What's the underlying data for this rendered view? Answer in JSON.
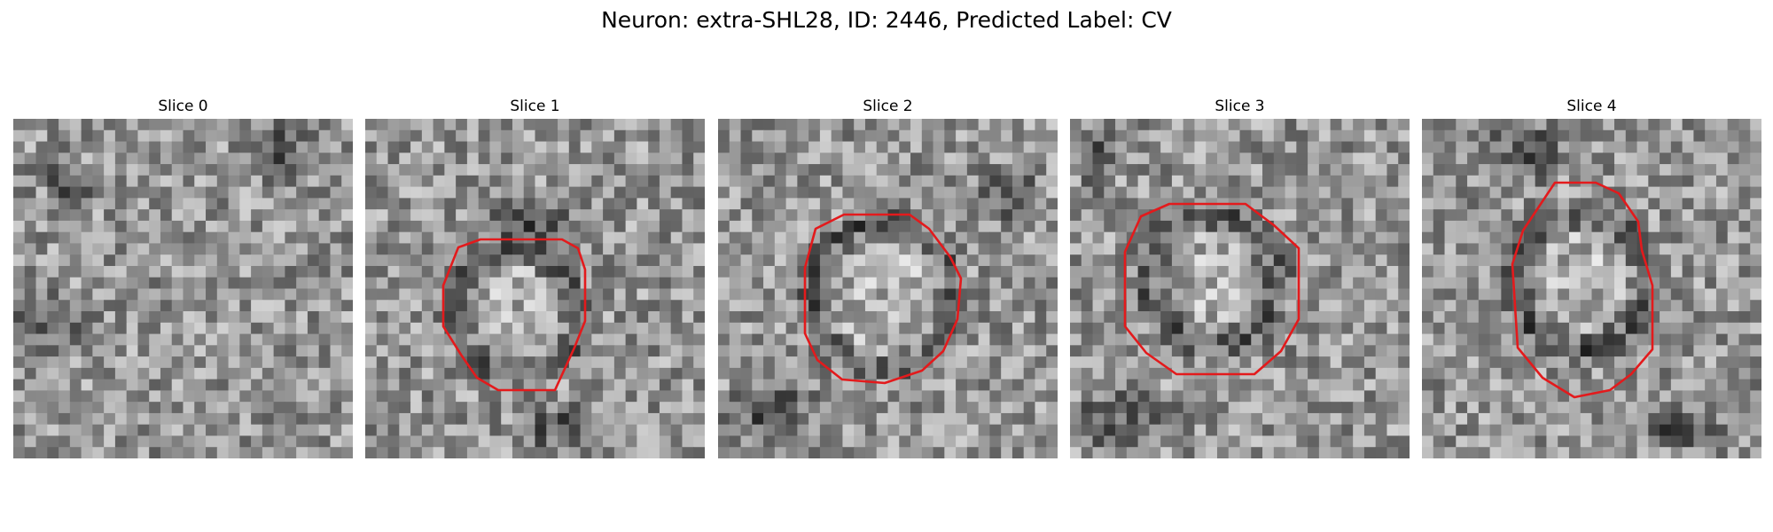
{
  "figure": {
    "title": "Neuron: extra-SHL28, ID: 2446, Predicted Label: CV",
    "contour_color": "#e31a1c"
  },
  "panels": [
    {
      "title": "Slice 0",
      "seed": 11,
      "contour": false
    },
    {
      "title": "Slice 1",
      "seed": 23,
      "contour": true
    },
    {
      "title": "Slice 2",
      "seed": 37,
      "contour": true
    },
    {
      "title": "Slice 3",
      "seed": 41,
      "contour": true
    },
    {
      "title": "Slice 4",
      "seed": 53,
      "contour": true
    }
  ]
}
